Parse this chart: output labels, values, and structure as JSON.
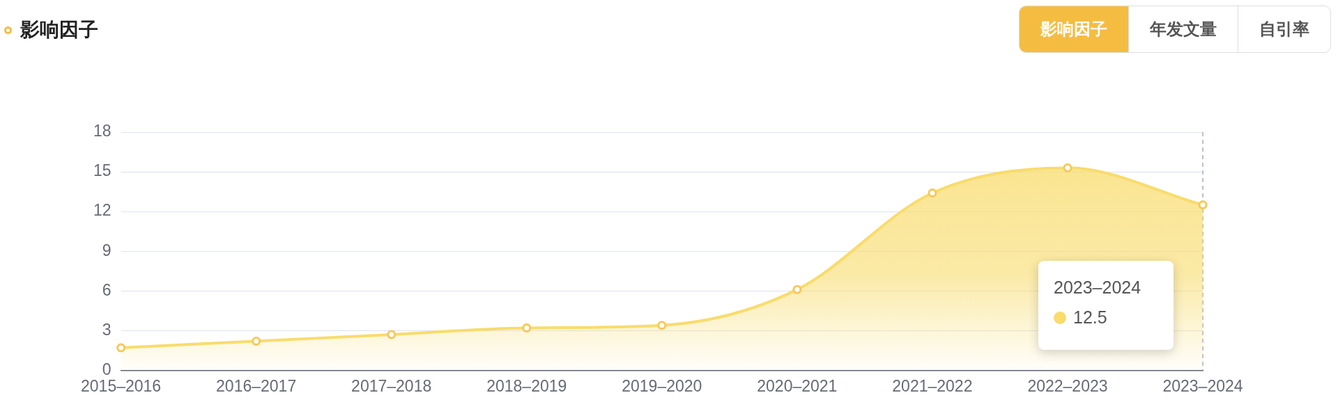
{
  "chart_data": {
    "type": "area",
    "title": "影响因子",
    "categories": [
      "2015–2016",
      "2016–2017",
      "2017–2018",
      "2018–2019",
      "2019–2020",
      "2020–2021",
      "2021–2022",
      "2022–2023",
      "2023–2024"
    ],
    "series": [
      {
        "color": "#f8dc6c",
        "values": [
          1.7,
          2.2,
          2.7,
          3.2,
          3.4,
          6.1,
          13.4,
          15.3,
          12.5
        ]
      }
    ],
    "ylim": [
      0,
      18
    ],
    "yticks": [
      0,
      3,
      6,
      9,
      12,
      15,
      18
    ],
    "grid": "y",
    "legend": false,
    "marker": "circle",
    "ref_lines": [
      {
        "axis": "x",
        "value": "2023–2024",
        "color": "#a9adbb",
        "line_style": "dashed"
      }
    ],
    "annotations": [
      "12.5",
      "年发文量",
      "自引率"
    ]
  }
}
